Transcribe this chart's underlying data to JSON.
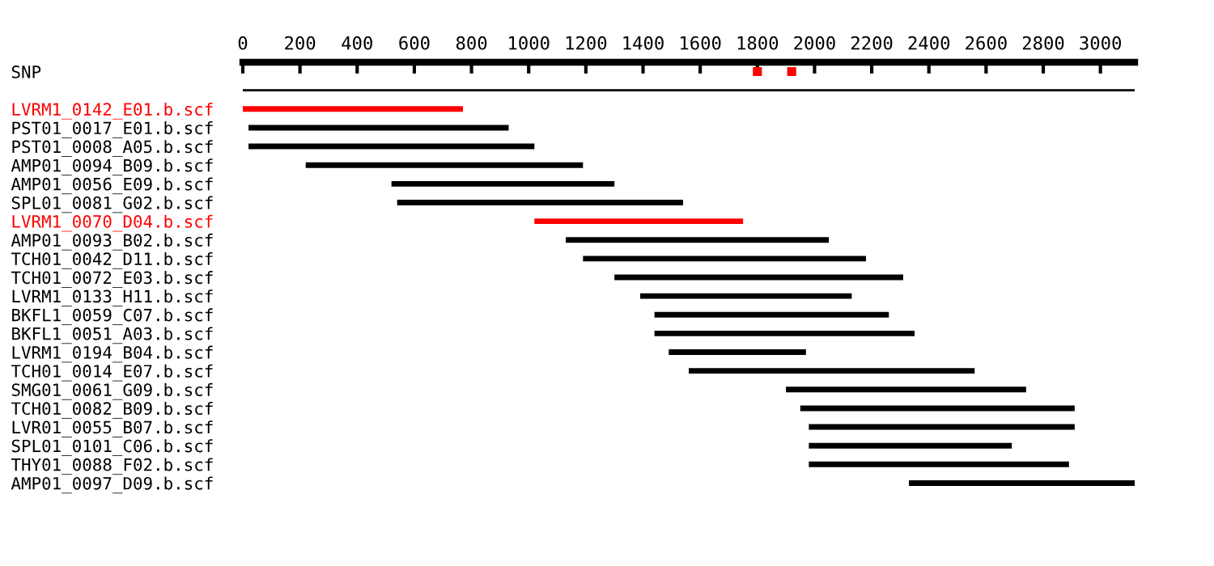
{
  "chart_data": {
    "type": "bar",
    "orientation": "horizontal",
    "categories": [
      "SNP",
      null,
      "LVRM1_0142_E01.b.scf",
      "PST01_0017_E01.b.scf",
      "PST01_0008_A05.b.scf",
      "AMP01_0094_B09.b.scf",
      "AMP01_0056_E09.b.scf",
      "SPL01_0081_G02.b.scf",
      "LVRM1_0070_D04.b.scf",
      "AMP01_0093_B02.b.scf",
      "TCH01_0042_D11.b.scf",
      "TCH01_0072_E03.b.scf",
      "LVRM1_0133_H11.b.scf",
      "BKFL1_0059_C07.b.scf",
      "BKFL1_0051_A03.b.scf",
      "LVRM1_0194_B04.b.scf",
      "TCH01_0014_E07.b.scf",
      "SMG01_0061_G09.b.scf",
      "TCH01_0082_B09.b.scf",
      "LVR01_0055_B07.b.scf",
      "SPL01_0101_C06.b.scf",
      "THY01_0088_F02.b.scf",
      "AMP01_0097_D09.b.scf"
    ],
    "series": [
      {
        "base": [
          null,
          0,
          0,
          20,
          20,
          220,
          520,
          540,
          1020,
          1130,
          1190,
          1300,
          1390,
          1440,
          1440,
          1490,
          1560,
          1900,
          1950,
          1980,
          1980,
          1980,
          2330
        ],
        "values": [
          null,
          3120,
          770,
          910,
          1000,
          970,
          780,
          1000,
          730,
          920,
          990,
          1010,
          740,
          820,
          910,
          480,
          1000,
          840,
          960,
          930,
          710,
          910,
          790
        ],
        "colors": [
          "#000000",
          "#000000",
          "#ff0000",
          "#000000",
          "#000000",
          "#000000",
          "#000000",
          "#000000",
          "#ff0000",
          "#000000",
          "#000000",
          "#000000",
          "#000000",
          "#000000",
          "#000000",
          "#000000",
          "#000000",
          "#000000",
          "#000000",
          "#000000",
          "#000000",
          "#000000",
          "#000000"
        ]
      },
      {
        "type": "scatter",
        "x": [
          "SNP",
          "SNP"
        ],
        "values": [
          1800,
          1920
        ],
        "color": "#ff0000",
        "marker": "square"
      }
    ],
    "xlim": [
      0,
      3120
    ],
    "xticks": [
      0,
      200,
      400,
      600,
      800,
      1000,
      1200,
      1400,
      1600,
      1800,
      2000,
      2200,
      2400,
      2600,
      2800,
      3000
    ],
    "grid": false
  }
}
